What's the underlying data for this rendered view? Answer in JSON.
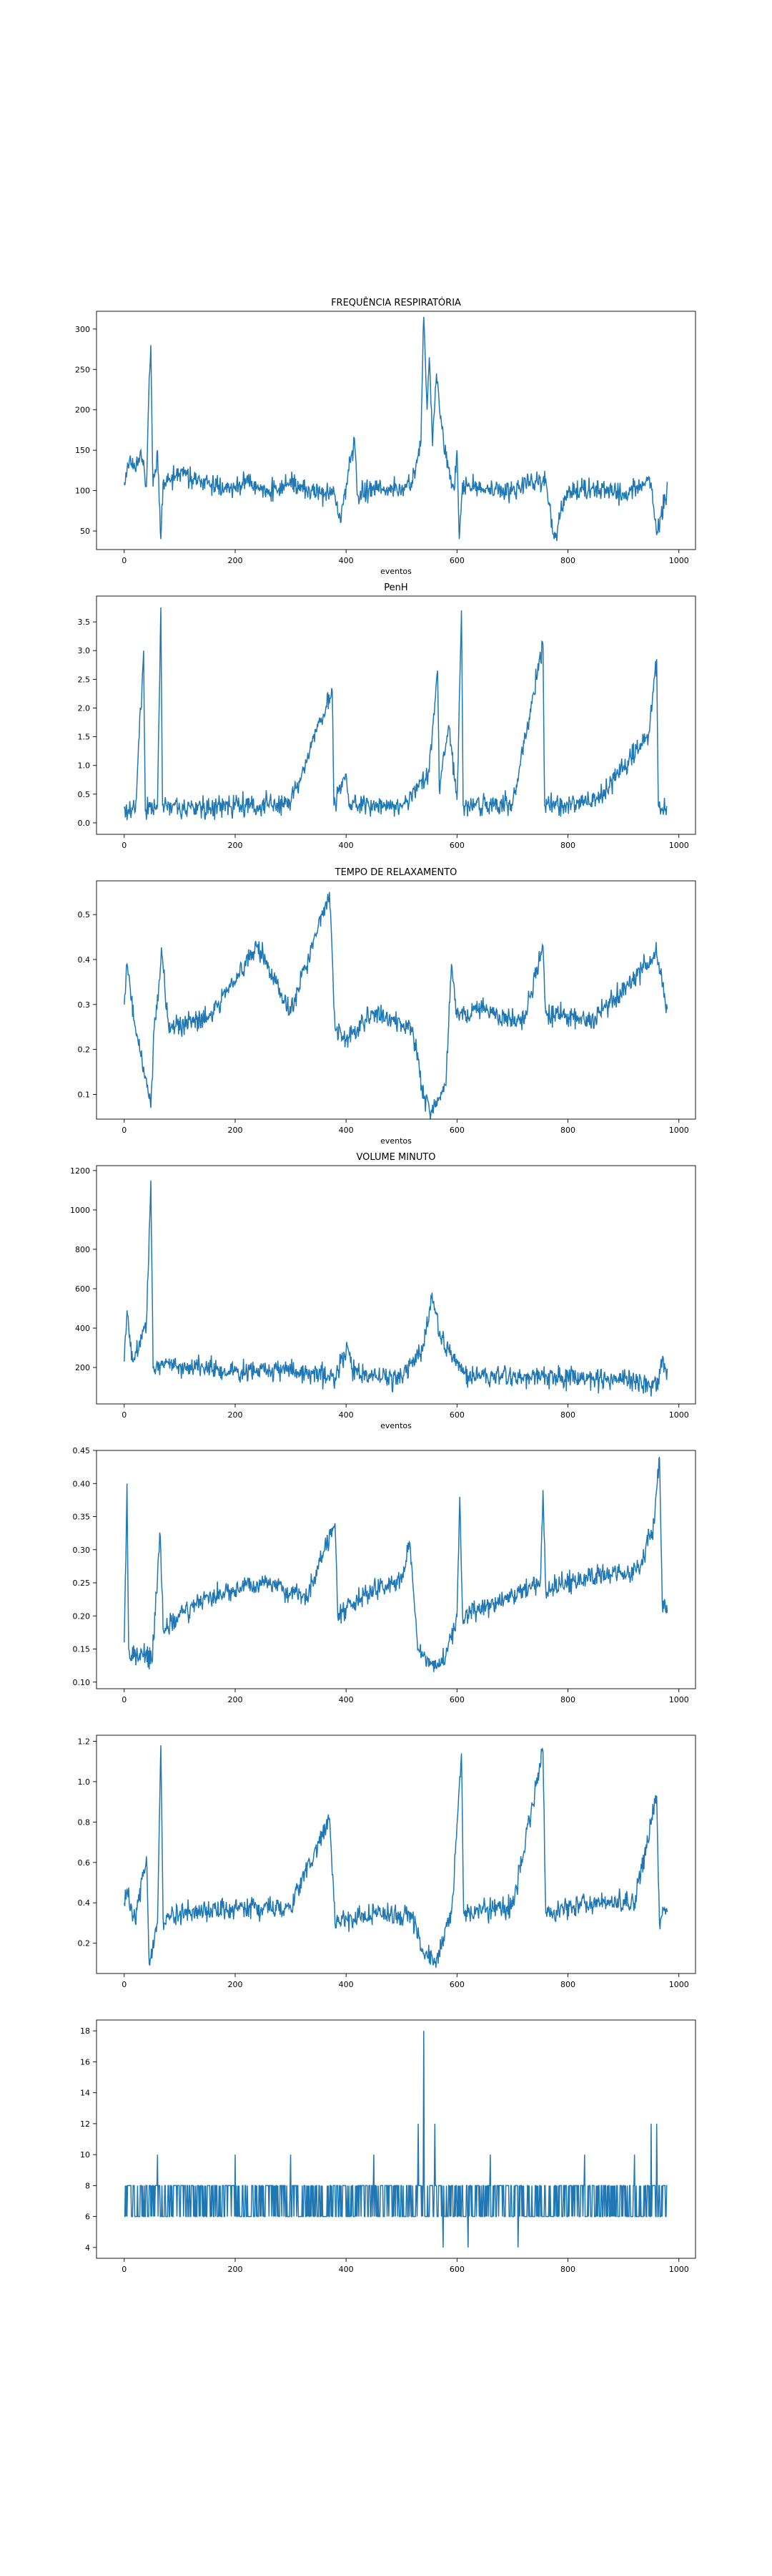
{
  "page": {
    "background": "#ffffff"
  },
  "line_color": "#1f77b4",
  "chart_data": [
    {
      "type": "line",
      "title": "FREQUÊNCIA RESPIRATÓRIA",
      "xlabel": "eventos",
      "ylabel": "",
      "xlim": [
        -50,
        1030
      ],
      "ylim": [
        27,
        322
      ],
      "xticks": [
        0,
        200,
        400,
        600,
        800,
        1000
      ],
      "yticks": [
        50,
        100,
        150,
        200,
        250,
        300
      ],
      "n_points": 980,
      "grid": false,
      "series": [
        {
          "color": "#1f77b4",
          "values": [
            [
              0,
              110
            ],
            [
              10,
              140
            ],
            [
              20,
              125
            ],
            [
              30,
              150
            ],
            [
              40,
              105
            ],
            [
              45,
              240
            ],
            [
              48,
              280
            ],
            [
              52,
              105
            ],
            [
              60,
              150
            ],
            [
              66,
              40
            ],
            [
              70,
              110
            ],
            [
              100,
              120
            ],
            [
              140,
              110
            ],
            [
              180,
              100
            ],
            [
              220,
              110
            ],
            [
              260,
              100
            ],
            [
              300,
              110
            ],
            [
              340,
              100
            ],
            [
              380,
              95
            ],
            [
              390,
              60
            ],
            [
              400,
              105
            ],
            [
              415,
              165
            ],
            [
              420,
              95
            ],
            [
              460,
              105
            ],
            [
              500,
              100
            ],
            [
              520,
              110
            ],
            [
              535,
              160
            ],
            [
              540,
              315
            ],
            [
              546,
              200
            ],
            [
              550,
              265
            ],
            [
              556,
              155
            ],
            [
              563,
              245
            ],
            [
              570,
              190
            ],
            [
              580,
              140
            ],
            [
              595,
              100
            ],
            [
              600,
              150
            ],
            [
              604,
              40
            ],
            [
              610,
              110
            ],
            [
              650,
              100
            ],
            [
              700,
              100
            ],
            [
              760,
              115
            ],
            [
              775,
              40
            ],
            [
              800,
              100
            ],
            [
              850,
              105
            ],
            [
              900,
              95
            ],
            [
              950,
              110
            ],
            [
              960,
              45
            ],
            [
              980,
              105
            ]
          ]
        }
      ]
    },
    {
      "type": "line",
      "title": "PenH",
      "xlabel": "",
      "ylabel": "",
      "xlim": [
        -50,
        1030
      ],
      "ylim": [
        -0.2,
        3.95
      ],
      "xticks": [
        0,
        200,
        400,
        600,
        800,
        1000
      ],
      "yticks": [
        0.0,
        0.5,
        1.0,
        1.5,
        2.0,
        2.5,
        3.0,
        3.5
      ],
      "n_points": 980,
      "grid": false,
      "series": [
        {
          "color": "#1f77b4",
          "values": [
            [
              0,
              0.25
            ],
            [
              20,
              0.2
            ],
            [
              35,
              3.0
            ],
            [
              38,
              0.2
            ],
            [
              60,
              0.3
            ],
            [
              66,
              3.75
            ],
            [
              69,
              0.3
            ],
            [
              100,
              0.25
            ],
            [
              200,
              0.3
            ],
            [
              300,
              0.35
            ],
            [
              375,
              2.3
            ],
            [
              378,
              0.3
            ],
            [
              400,
              0.85
            ],
            [
              405,
              0.3
            ],
            [
              500,
              0.3
            ],
            [
              550,
              0.9
            ],
            [
              565,
              2.65
            ],
            [
              568,
              0.6
            ],
            [
              585,
              1.7
            ],
            [
              600,
              0.4
            ],
            [
              608,
              3.7
            ],
            [
              611,
              0.3
            ],
            [
              700,
              0.3
            ],
            [
              755,
              3.1
            ],
            [
              758,
              0.3
            ],
            [
              850,
              0.4
            ],
            [
              945,
              1.5
            ],
            [
              960,
              2.85
            ],
            [
              963,
              0.3
            ],
            [
              980,
              0.2
            ]
          ]
        }
      ]
    },
    {
      "type": "line",
      "title": "TEMPO DE RELAXAMENTO",
      "xlabel": "eventos",
      "ylabel": "",
      "xlim": [
        -50,
        1030
      ],
      "ylim": [
        0.045,
        0.575
      ],
      "xticks": [
        0,
        200,
        400,
        600,
        800,
        1000
      ],
      "yticks": [
        0.1,
        0.2,
        0.3,
        0.4,
        0.5
      ],
      "n_points": 980,
      "grid": false,
      "series": [
        {
          "color": "#1f77b4",
          "values": [
            [
              0,
              0.3
            ],
            [
              5,
              0.39
            ],
            [
              20,
              0.25
            ],
            [
              45,
              0.09
            ],
            [
              48,
              0.07
            ],
            [
              55,
              0.27
            ],
            [
              68,
              0.41
            ],
            [
              80,
              0.25
            ],
            [
              150,
              0.27
            ],
            [
              240,
              0.43
            ],
            [
              300,
              0.28
            ],
            [
              370,
              0.55
            ],
            [
              380,
              0.25
            ],
            [
              400,
              0.22
            ],
            [
              450,
              0.28
            ],
            [
              520,
              0.25
            ],
            [
              540,
              0.09
            ],
            [
              555,
              0.06
            ],
            [
              580,
              0.12
            ],
            [
              590,
              0.39
            ],
            [
              600,
              0.27
            ],
            [
              650,
              0.29
            ],
            [
              720,
              0.26
            ],
            [
              755,
              0.43
            ],
            [
              760,
              0.28
            ],
            [
              850,
              0.27
            ],
            [
              960,
              0.41
            ],
            [
              980,
              0.29
            ]
          ]
        }
      ]
    },
    {
      "type": "line",
      "title": "VOLUME MINUTO",
      "xlabel": "eventos",
      "ylabel": "",
      "xlim": [
        -50,
        1030
      ],
      "ylim": [
        15,
        1225
      ],
      "xticks": [
        0,
        200,
        400,
        600,
        800,
        1000
      ],
      "yticks": [
        200,
        400,
        600,
        800,
        1000,
        1200
      ],
      "n_points": 980,
      "grid": false,
      "series": [
        {
          "color": "#1f77b4",
          "values": [
            [
              0,
              230
            ],
            [
              5,
              490
            ],
            [
              15,
              230
            ],
            [
              40,
              430
            ],
            [
              48,
              1150
            ],
            [
              52,
              200
            ],
            [
              70,
              220
            ],
            [
              100,
              210
            ],
            [
              200,
              180
            ],
            [
              300,
              190
            ],
            [
              380,
              150
            ],
            [
              400,
              280
            ],
            [
              420,
              160
            ],
            [
              500,
              150
            ],
            [
              540,
              310
            ],
            [
              555,
              580
            ],
            [
              570,
              350
            ],
            [
              600,
              220
            ],
            [
              620,
              160
            ],
            [
              700,
              150
            ],
            [
              800,
              150
            ],
            [
              850,
              140
            ],
            [
              900,
              140
            ],
            [
              960,
              100
            ],
            [
              970,
              240
            ],
            [
              980,
              150
            ]
          ]
        }
      ]
    },
    {
      "type": "line",
      "title": "",
      "xlabel": "",
      "ylabel": "",
      "xlim": [
        -50,
        1030
      ],
      "ylim": [
        0.09,
        0.45
      ],
      "xticks": [
        0,
        200,
        400,
        600,
        800,
        1000
      ],
      "yticks": [
        0.1,
        0.15,
        0.2,
        0.25,
        0.3,
        0.35,
        0.4,
        0.45
      ],
      "n_points": 980,
      "grid": false,
      "series": [
        {
          "color": "#1f77b4",
          "values": [
            [
              0,
              0.16
            ],
            [
              5,
              0.4
            ],
            [
              8,
              0.15
            ],
            [
              50,
              0.13
            ],
            [
              65,
              0.32
            ],
            [
              70,
              0.18
            ],
            [
              100,
              0.2
            ],
            [
              150,
              0.23
            ],
            [
              200,
              0.24
            ],
            [
              250,
              0.25
            ],
            [
              330,
              0.23
            ],
            [
              380,
              0.34
            ],
            [
              385,
              0.2
            ],
            [
              400,
              0.21
            ],
            [
              450,
              0.24
            ],
            [
              500,
              0.25
            ],
            [
              515,
              0.31
            ],
            [
              530,
              0.15
            ],
            [
              560,
              0.12
            ],
            [
              580,
              0.14
            ],
            [
              600,
              0.2
            ],
            [
              605,
              0.38
            ],
            [
              610,
              0.2
            ],
            [
              700,
              0.23
            ],
            [
              750,
              0.25
            ],
            [
              755,
              0.39
            ],
            [
              760,
              0.24
            ],
            [
              850,
              0.26
            ],
            [
              930,
              0.27
            ],
            [
              955,
              0.34
            ],
            [
              965,
              0.44
            ],
            [
              970,
              0.22
            ],
            [
              980,
              0.2
            ]
          ]
        }
      ]
    },
    {
      "type": "line",
      "title": "",
      "xlabel": "",
      "ylabel": "",
      "xlim": [
        -50,
        1030
      ],
      "ylim": [
        0.05,
        1.23
      ],
      "xticks": [
        0,
        200,
        400,
        600,
        800,
        1000
      ],
      "yticks": [
        0.2,
        0.4,
        0.6,
        0.8,
        1.0,
        1.2
      ],
      "n_points": 980,
      "grid": false,
      "series": [
        {
          "color": "#1f77b4",
          "values": [
            [
              0,
              0.4
            ],
            [
              5,
              0.47
            ],
            [
              20,
              0.3
            ],
            [
              40,
              0.63
            ],
            [
              45,
              0.1
            ],
            [
              60,
              0.3
            ],
            [
              66,
              1.18
            ],
            [
              70,
              0.33
            ],
            [
              100,
              0.35
            ],
            [
              200,
              0.37
            ],
            [
              300,
              0.38
            ],
            [
              370,
              0.82
            ],
            [
              380,
              0.3
            ],
            [
              450,
              0.35
            ],
            [
              520,
              0.32
            ],
            [
              540,
              0.15
            ],
            [
              560,
              0.1
            ],
            [
              590,
              0.35
            ],
            [
              608,
              1.14
            ],
            [
              612,
              0.35
            ],
            [
              700,
              0.38
            ],
            [
              755,
              1.15
            ],
            [
              760,
              0.35
            ],
            [
              850,
              0.4
            ],
            [
              920,
              0.4
            ],
            [
              960,
              0.93
            ],
            [
              965,
              0.3
            ],
            [
              980,
              0.4
            ]
          ]
        }
      ]
    },
    {
      "type": "line",
      "title": "",
      "xlabel": "",
      "ylabel": "",
      "xlim": [
        -50,
        1030
      ],
      "ylim": [
        3.3,
        18.7
      ],
      "xticks": [
        0,
        200,
        400,
        600,
        800,
        1000
      ],
      "yticks": [
        4,
        6,
        8,
        10,
        12,
        14,
        16,
        18
      ],
      "n_points": 980,
      "grid": false,
      "series": [
        {
          "color": "#1f77b4",
          "values": [
            [
              0,
              8
            ],
            [
              60,
              10
            ],
            [
              200,
              10
            ],
            [
              300,
              10
            ],
            [
              450,
              10
            ],
            [
              530,
              12
            ],
            [
              540,
              18
            ],
            [
              560,
              12
            ],
            [
              575,
              4
            ],
            [
              620,
              4
            ],
            [
              660,
              10
            ],
            [
              710,
              4
            ],
            [
              830,
              10
            ],
            [
              920,
              10
            ],
            [
              950,
              12
            ],
            [
              960,
              12
            ],
            [
              980,
              10
            ]
          ]
        }
      ]
    }
  ]
}
